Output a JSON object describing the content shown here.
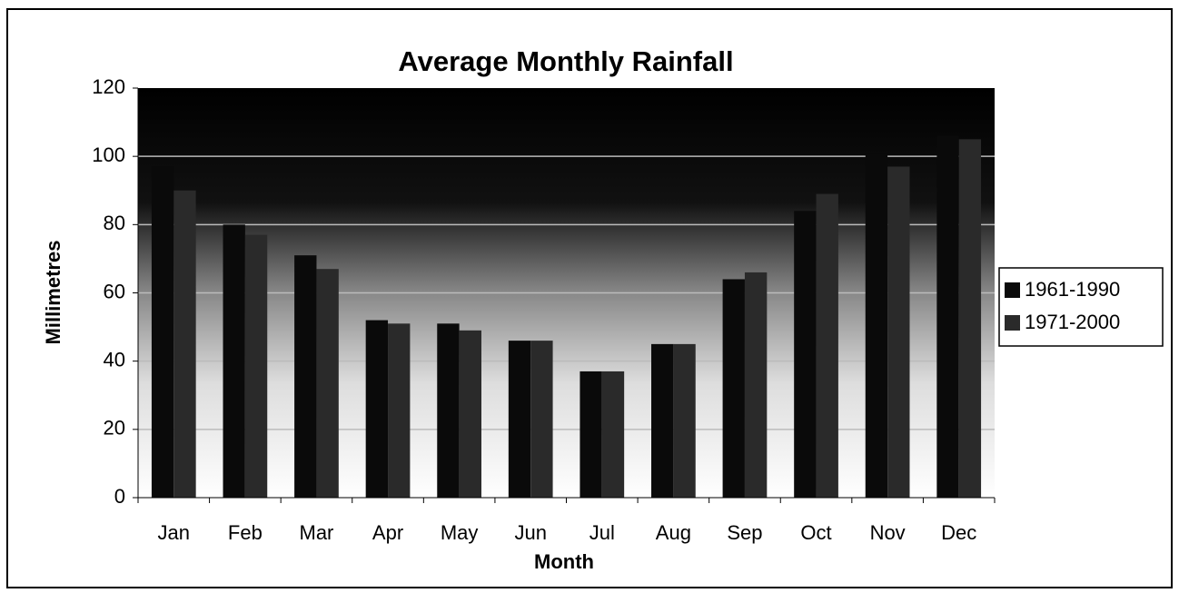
{
  "chart_data": {
    "type": "bar",
    "title": "Average Monthly Rainfall",
    "x_label": "Month",
    "y_label": "Millimetres",
    "categories": [
      "Jan",
      "Feb",
      "Mar",
      "Apr",
      "May",
      "Jun",
      "Jul",
      "Aug",
      "Sep",
      "Oct",
      "Nov",
      "Dec"
    ],
    "series": [
      {
        "name": "1961-1990",
        "color": "#0a0a0a",
        "values": [
          97,
          80,
          71,
          52,
          51,
          46,
          37,
          45,
          64,
          84,
          101,
          106
        ]
      },
      {
        "name": "1971-2000",
        "color": "#2a2a2a",
        "values": [
          90,
          77,
          67,
          51,
          49,
          46,
          37,
          45,
          66,
          89,
          97,
          105
        ]
      }
    ],
    "ylim": [
      0,
      120
    ],
    "yticks": [
      0,
      20,
      40,
      60,
      80,
      100,
      120
    ],
    "grid": true,
    "legend": "right"
  }
}
